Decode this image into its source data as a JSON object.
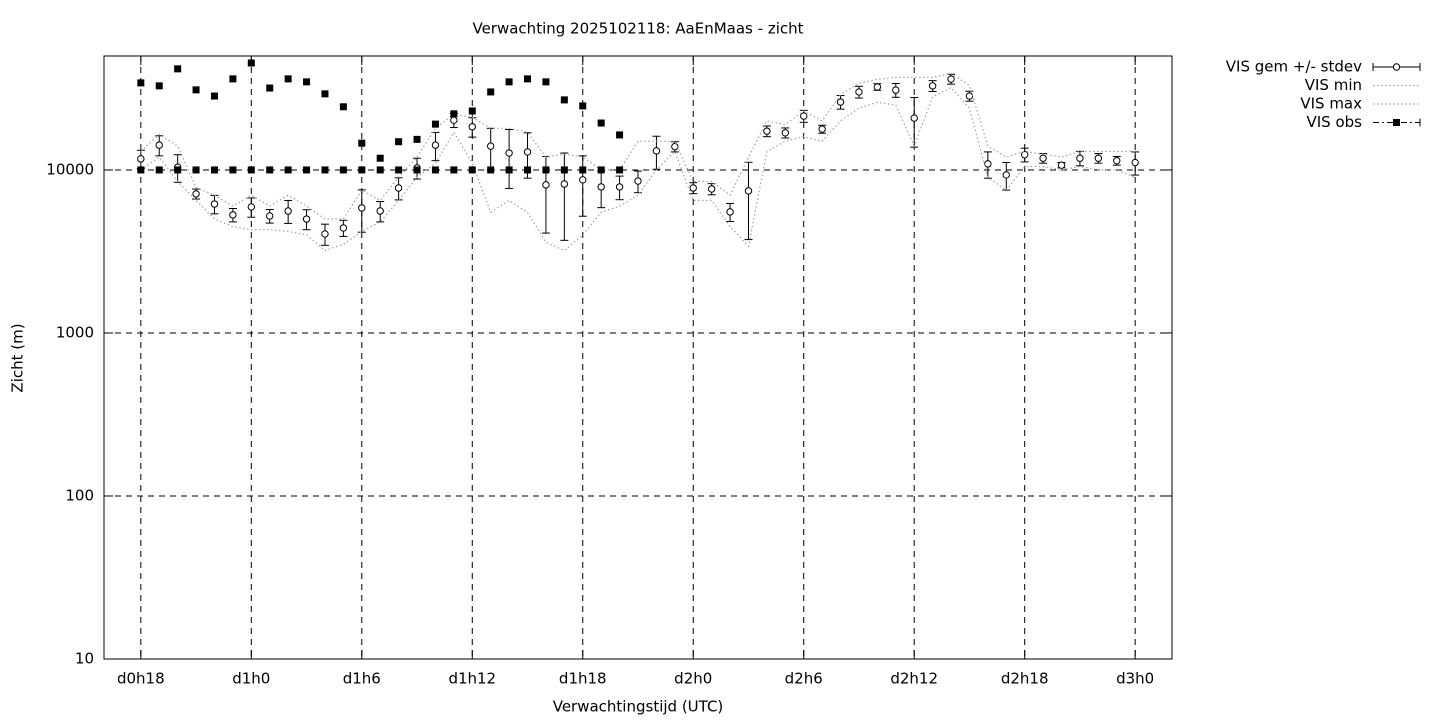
{
  "chart_data": {
    "type": "errorbar",
    "title": "Verwachting 2025102118: AaEnMaas - zicht",
    "xlabel": "Verwachtingstijd (UTC)",
    "ylabel": "Zicht (m)",
    "log_y": true,
    "grid": true,
    "legend": "outside-top-right",
    "xlim": [
      16,
      74
    ],
    "xticks": [
      {
        "value": 18,
        "label": "d0h18"
      },
      {
        "value": 24,
        "label": "d1h0"
      },
      {
        "value": 30,
        "label": "d1h6"
      },
      {
        "value": 36,
        "label": "d1h12"
      },
      {
        "value": 42,
        "label": "d1h18"
      },
      {
        "value": 48,
        "label": "d2h0"
      },
      {
        "value": 54,
        "label": "d2h6"
      },
      {
        "value": 60,
        "label": "d2h12"
      },
      {
        "value": 66,
        "label": "d2h18"
      },
      {
        "value": 72,
        "label": "d3h0"
      }
    ],
    "ylim": [
      10,
      50000
    ],
    "yticks": [
      10,
      100,
      1000,
      10000
    ],
    "x": [
      18,
      19,
      20,
      21,
      22,
      23,
      24,
      25,
      26,
      27,
      28,
      29,
      30,
      31,
      32,
      33,
      34,
      35,
      36,
      37,
      38,
      39,
      40,
      41,
      42,
      43,
      44,
      45,
      46,
      47,
      48,
      49,
      50,
      51,
      52,
      53,
      54,
      55,
      56,
      57,
      58,
      59,
      60,
      61,
      62,
      63,
      64,
      65,
      66,
      67,
      68,
      69,
      70,
      71,
      72
    ],
    "series": [
      {
        "name": "VIS gem +/- stdev",
        "color": "#000000",
        "style": "errorbar",
        "values": [
          11700,
          14200,
          10400,
          7130,
          6180,
          5300,
          5930,
          5220,
          5600,
          5000,
          4050,
          4410,
          5850,
          5600,
          7750,
          10300,
          14200,
          20200,
          18400,
          14000,
          12700,
          12900,
          8100,
          8200,
          8700,
          7870,
          7870,
          8550,
          13100,
          13900,
          7750,
          7640,
          5530,
          7440,
          17300,
          16900,
          21400,
          17800,
          26100,
          30100,
          32300,
          30900,
          20800,
          32800,
          36100,
          28400,
          10900,
          9320,
          12400,
          11800,
          10700,
          11800,
          11800,
          11400,
          11100
        ],
        "errors": [
          1500,
          2000,
          2000,
          500,
          800,
          500,
          800,
          500,
          900,
          700,
          600,
          500,
          1700,
          800,
          1200,
          1500,
          2800,
          2000,
          2500,
          4000,
          5000,
          4000,
          4000,
          4500,
          3500,
          2000,
          1300,
          1300,
          3000,
          1000,
          600,
          600,
          700,
          3700,
          1300,
          1200,
          1800,
          1000,
          2500,
          2500,
          1500,
          3000,
          7000,
          2500,
          2500,
          2000,
          2000,
          1800,
          1200,
          800,
          400,
          1200,
          800,
          700,
          1800
        ]
      },
      {
        "name": "VIS min",
        "color": "#a0a0a0",
        "style": "dotted",
        "values": [
          10000,
          12000,
          8500,
          6500,
          5000,
          4500,
          4300,
          4300,
          4200,
          4000,
          3200,
          3500,
          4200,
          4800,
          6500,
          9000,
          11000,
          17000,
          11000,
          5500,
          6500,
          5500,
          3600,
          3200,
          4000,
          5500,
          6000,
          7000,
          10000,
          13000,
          6500,
          6500,
          4500,
          3400,
          13000,
          15000,
          16000,
          15000,
          20000,
          24000,
          26000,
          25000,
          14000,
          28000,
          32000,
          24000,
          9000,
          7500,
          10500,
          10500,
          10000,
          10500,
          10000,
          10000,
          9000
        ]
      },
      {
        "name": "VIS max",
        "color": "#a0a0a0",
        "style": "dotted",
        "values": [
          13000,
          16500,
          14000,
          7800,
          7000,
          6000,
          7000,
          6000,
          7000,
          6000,
          5000,
          5000,
          7500,
          6500,
          9000,
          12000,
          18000,
          22000,
          21000,
          18000,
          18000,
          17000,
          12000,
          12500,
          12000,
          10000,
          10000,
          15000,
          15000,
          15000,
          8500,
          8500,
          7000,
          12000,
          20000,
          19000,
          23000,
          20000,
          29000,
          34000,
          36000,
          37000,
          37000,
          37000,
          39000,
          33000,
          14000,
          12000,
          13000,
          12500,
          12000,
          13000,
          13000,
          13000,
          13000
        ]
      },
      {
        "name": "VIS obs",
        "color": "#000000",
        "style": "squares",
        "values": [
          34200,
          32800,
          41700,
          31000,
          28400,
          36200,
          45300,
          31800,
          36200,
          34700,
          29300,
          24400,
          14600,
          11800,
          14900,
          15400,
          19100,
          22100,
          23000,
          30100,
          34700,
          36200,
          34700,
          26900,
          24700,
          19400,
          16400,
          null,
          null,
          null,
          null,
          null,
          null,
          null,
          null,
          null,
          null,
          null,
          null,
          null,
          null,
          null,
          null,
          null,
          null,
          null,
          null,
          null,
          null,
          null,
          null,
          null,
          null,
          null,
          null
        ],
        "lower": [
          10000,
          10000,
          10000,
          10000,
          10000,
          10000,
          10000,
          10000,
          10000,
          10000,
          10000,
          10000,
          10000,
          10000,
          10000,
          10000,
          10000,
          10000,
          10000,
          10000,
          10000,
          10000,
          10000,
          10000,
          10000,
          10000,
          10000,
          null,
          null,
          null,
          null,
          null,
          null,
          null,
          null,
          null,
          null,
          null,
          null,
          null,
          null,
          null,
          null,
          null,
          null,
          null,
          null,
          null,
          null,
          null,
          null,
          null,
          null,
          null,
          null
        ]
      }
    ]
  }
}
